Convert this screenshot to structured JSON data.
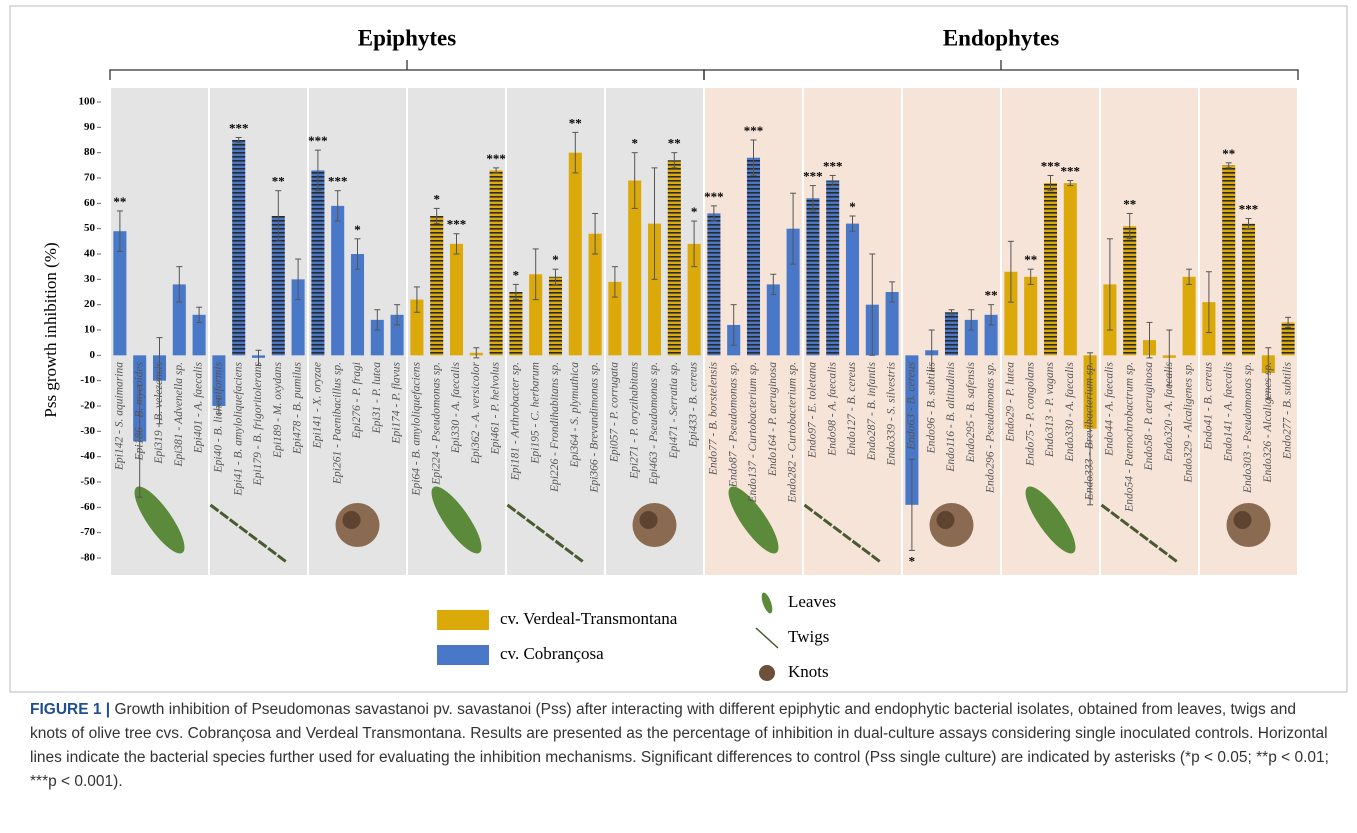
{
  "chart_data": {
    "type": "bar",
    "groups": [
      {
        "label": "Epiphytes",
        "color": "#e4e4e4"
      },
      {
        "label": "Endophytes",
        "color": "#f7e4d9"
      }
    ],
    "y_label": "Pss growth inhibition (%)",
    "categories": [
      "Epi142 - S. aquimarina",
      "Epi186 - B. mycoides",
      "Epi319 - B. velezensis",
      "Epi381 - Advenella sp.",
      "Epi401 - A. faecalis",
      "Epi40 - B. licheniformis",
      "Epi41 - B. amyloliquefaciens",
      "Epi179 - B. frigoritolerans",
      "Epi189 - M. oxydans",
      "Epi478 - B. pumilus",
      "Epi141 - X. oryzae",
      "Epi261 - Paenibacillus sp.",
      "Epi276 - P. fragi",
      "Epi31 - P. lutea",
      "Epi174 - P. flavus",
      "Epi64 - B. amyloliquefaciens",
      "Epi224 - Pseudomonas sp.",
      "Epi330 - A. faecalis",
      "Epi362 - A. versicolor",
      "Epi461 - P. helvolus",
      "Epi181 - Arthrobacter sp.",
      "Epi195 - C. herbarum",
      "Epi226 - Frondihabitans sp.",
      "Epi364 - S. plymuthica",
      "Epi366 - Brevundimonas sp.",
      "Epi057 - P. corrugata",
      "Epi271 - P. oryzihabitans",
      "Epi463 - Pseudomonas sp.",
      "Epi471 - Serratia sp.",
      "Epi433 - B. cereus",
      "Endo77 - B. borstelensis",
      "Endo87 - Pseudomonas sp.",
      "Endo137 - Curtobacterium sp.",
      "Endo164 - P. aeruginosa",
      "Endo282 - Curtobacterium sp.",
      "Endo97 - E. toletana",
      "Endo98 - A. faecalis",
      "Endo127 - B. cereus",
      "Endo287 - B. infantis",
      "Endo339 - S. silvestris",
      "Endo63 - B. cereus",
      "Endo96 - B. subtilis",
      "Endo116 - B. altitudinis",
      "Endo295 - B. safensis",
      "Endo296 - Pseudomonas sp.",
      "Endo29 - P. lutea",
      "Endo75 - P. congolans",
      "Endo313 - P. vagans",
      "Endo330 - A. faecalis",
      "Endo333 - Brevibacterium sp.",
      "Endo44 - A. faecalis",
      "Endo54 - Paenochrobactrum sp.",
      "Endo58 - P. aeruginosa",
      "Endo320 - A. faecalis",
      "Endo329 - Alcaligenes sp.",
      "Endo41 - B. cereus",
      "Endo141 - A. faecalis",
      "Endo303 - Pseudomonas sp.",
      "Endo326 - Alcaligenes sp.",
      "Endo277 - B. subtilis"
    ],
    "series": [
      {
        "name": "cv. Verdeal-Transmontana",
        "color": "#dca90a",
        "values": [
          null,
          null,
          null,
          null,
          null,
          null,
          null,
          null,
          null,
          null,
          null,
          null,
          null,
          null,
          null,
          22,
          55,
          44,
          1,
          73,
          25,
          32,
          31,
          80,
          48,
          29,
          69,
          52,
          77,
          44,
          null,
          null,
          null,
          null,
          null,
          null,
          null,
          null,
          null,
          null,
          null,
          null,
          null,
          null,
          null,
          33,
          31,
          68,
          68,
          -29,
          28,
          51,
          6,
          -1,
          31,
          21,
          75,
          52,
          -7,
          13
        ]
      },
      {
        "name": "cv. Cobrançosa",
        "color": "#4a78c8",
        "values": [
          49,
          -34,
          -10,
          28,
          16,
          -20,
          85,
          -1,
          55,
          30,
          73,
          59,
          40,
          14,
          16,
          null,
          null,
          null,
          null,
          null,
          null,
          null,
          null,
          null,
          null,
          null,
          null,
          null,
          null,
          null,
          56,
          12,
          78,
          28,
          50,
          62,
          69,
          52,
          20,
          25,
          -59,
          2,
          17,
          14,
          16,
          null,
          null,
          null,
          null,
          null,
          null,
          null,
          null,
          null,
          null,
          null,
          null,
          null,
          null,
          null
        ]
      }
    ],
    "errors": [
      8,
      22,
      17,
      7,
      3,
      3,
      1,
      3,
      10,
      8,
      8,
      6,
      6,
      4,
      4,
      5,
      3,
      4,
      2,
      1,
      3,
      10,
      3,
      8,
      8,
      6,
      11,
      22,
      3,
      9,
      3,
      8,
      7,
      4,
      14,
      5,
      2,
      3,
      20,
      4,
      18,
      8,
      1,
      4,
      4,
      12,
      3,
      3,
      1,
      30,
      18,
      5,
      7,
      11,
      3,
      12,
      1,
      2,
      10,
      2
    ],
    "hatched": [
      false,
      false,
      false,
      false,
      false,
      false,
      true,
      false,
      true,
      false,
      true,
      false,
      false,
      false,
      false,
      false,
      true,
      false,
      false,
      true,
      true,
      false,
      true,
      false,
      false,
      false,
      false,
      false,
      true,
      false,
      true,
      false,
      true,
      false,
      false,
      true,
      true,
      false,
      false,
      false,
      false,
      false,
      true,
      false,
      false,
      false,
      false,
      true,
      false,
      false,
      false,
      true,
      false,
      false,
      false,
      false,
      true,
      true,
      false,
      true
    ],
    "significance": [
      "**",
      null,
      null,
      null,
      null,
      null,
      "***",
      null,
      "**",
      null,
      "***",
      "***",
      "*",
      null,
      null,
      null,
      "*",
      "***",
      null,
      "***",
      "*",
      null,
      "*",
      "**",
      null,
      null,
      "*",
      null,
      "**",
      "*",
      "***",
      null,
      "***",
      null,
      null,
      "***",
      "***",
      "*",
      null,
      null,
      "*",
      null,
      null,
      null,
      "**",
      null,
      "**",
      "***",
      "***",
      null,
      null,
      "**",
      null,
      null,
      null,
      null,
      "**",
      "***",
      null,
      null
    ],
    "ylim": [
      -80,
      100
    ],
    "yticks": [
      -80,
      -70,
      -60,
      -50,
      -40,
      -30,
      -20,
      -10,
      0,
      10,
      20,
      30,
      40,
      50,
      60,
      70,
      80,
      90,
      100
    ],
    "grid": false,
    "source_legend": [
      "Leaves",
      "Twigs",
      "Knots"
    ]
  },
  "caption": {
    "label": "FIGURE 1 |",
    "text": "Growth inhibition of Pseudomonas savastanoi pv. savastanoi (Pss) after interacting with different epiphytic and endophytic bacterial isolates, obtained from leaves, twigs and knots of olive tree cvs. Cobrançosa and Verdeal Transmontana. Results are presented as the percentage of inhibition in dual-culture assays considering single inoculated controls. Horizontal lines indicate the bacterial species further used for evaluating the inhibition mechanisms. Significant differences to control (Pss single culture) are indicated by asterisks (*p < 0.05; **p < 0.01; ***p < 0.001)."
  }
}
